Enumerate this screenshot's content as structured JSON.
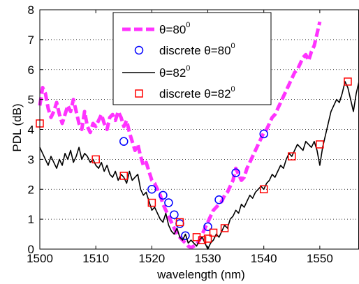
{
  "chart_data": {
    "type": "line",
    "xlabel": "wavelength (nm)",
    "ylabel": "PDL (dB)",
    "xlim": [
      1500,
      1557
    ],
    "ylim": [
      0,
      8
    ],
    "x_ticks": [
      1500,
      1510,
      1520,
      1530,
      1540,
      1550
    ],
    "y_ticks": [
      0,
      1,
      2,
      3,
      4,
      5,
      6,
      7,
      8
    ],
    "grid": "horizontal dotted",
    "legend_position": "top-center",
    "series": [
      {
        "name": "θ=80°",
        "legend_main": "θ=80",
        "legend_sup": "0",
        "style": "dashed-line",
        "color": "#ff33ff",
        "x": [
          1500,
          1500.5,
          1501,
          1501.5,
          1502,
          1502.5,
          1503,
          1503.5,
          1504,
          1504.5,
          1505,
          1505.5,
          1506,
          1506.5,
          1507,
          1507.5,
          1508,
          1508.5,
          1509,
          1509.5,
          1510,
          1510.5,
          1511,
          1511.5,
          1512,
          1512.5,
          1513,
          1513.5,
          1514,
          1514.5,
          1515,
          1515.5,
          1516,
          1516.5,
          1517,
          1517.5,
          1518,
          1518.5,
          1519,
          1519.5,
          1520,
          1520.5,
          1521,
          1521.5,
          1522,
          1522.5,
          1523,
          1523.5,
          1524,
          1524.5,
          1525,
          1525.5,
          1526,
          1526.5,
          1527,
          1527.5,
          1528,
          1528.5,
          1529,
          1529.5,
          1530,
          1530.5,
          1531,
          1531.5,
          1532,
          1532.5,
          1533,
          1533.5,
          1534,
          1534.5,
          1535,
          1535.5,
          1536,
          1536.5,
          1537,
          1537.5,
          1538,
          1538.5,
          1539,
          1539.5,
          1540,
          1540.5,
          1541,
          1541.5,
          1542,
          1542.5,
          1543,
          1543.5,
          1544,
          1544.5,
          1545,
          1545.5,
          1546,
          1546.5,
          1547,
          1547.5,
          1548,
          1548.5,
          1549,
          1549.5,
          1550
        ],
        "values": [
          4.8,
          5.4,
          5.2,
          4.7,
          4.4,
          4.6,
          4.9,
          4.5,
          4.2,
          4.5,
          4.8,
          4.6,
          5.0,
          4.6,
          4.2,
          4.0,
          4.6,
          4.1,
          3.9,
          4.2,
          4.1,
          4.3,
          4.5,
          4.2,
          4.0,
          4.4,
          4.5,
          4.3,
          4.6,
          4.4,
          4.1,
          4.3,
          3.9,
          3.6,
          3.3,
          3.5,
          3.1,
          2.8,
          2.9,
          2.6,
          2.3,
          2.2,
          2.0,
          1.8,
          1.5,
          1.3,
          1.1,
          0.9,
          0.7,
          0.5,
          0.4,
          0.3,
          0.2,
          0.1,
          0.05,
          0.1,
          0.15,
          0.3,
          0.5,
          0.7,
          0.9,
          1.1,
          1.3,
          1.4,
          1.5,
          1.6,
          1.8,
          1.9,
          2.1,
          2.3,
          2.7,
          2.5,
          2.3,
          2.4,
          2.7,
          2.9,
          3.1,
          3.3,
          3.5,
          3.7,
          3.9,
          4.0,
          4.2,
          4.4,
          4.5,
          4.7,
          4.9,
          5.1,
          5.3,
          5.5,
          5.7,
          5.9,
          6.0,
          6.2,
          6.4,
          6.5,
          6.3,
          6.6,
          6.8,
          7.2,
          7.6
        ]
      },
      {
        "name": "discrete θ=80°",
        "legend_main": "discrete θ=80",
        "legend_sup": "0",
        "style": "circle-markers",
        "color": "#0000ff",
        "x": [
          1515,
          1520,
          1522,
          1523,
          1524,
          1525,
          1526,
          1530,
          1532,
          1535,
          1540
        ],
        "values": [
          3.6,
          2.0,
          1.8,
          1.55,
          1.15,
          0.85,
          0.45,
          0.75,
          1.65,
          2.55,
          3.85
        ]
      },
      {
        "name": "θ=82°",
        "legend_main": "θ=82",
        "legend_sup": "0",
        "style": "solid-line",
        "color": "#000000",
        "x": [
          1500,
          1500.5,
          1501,
          1501.5,
          1502,
          1502.5,
          1503,
          1503.5,
          1504,
          1504.5,
          1505,
          1505.5,
          1506,
          1506.5,
          1507,
          1507.5,
          1508,
          1508.5,
          1509,
          1509.5,
          1510,
          1510.5,
          1511,
          1511.5,
          1512,
          1512.5,
          1513,
          1513.5,
          1514,
          1514.5,
          1515,
          1515.5,
          1516,
          1516.5,
          1517,
          1517.5,
          1518,
          1518.5,
          1519,
          1519.5,
          1520,
          1520.5,
          1521,
          1521.5,
          1522,
          1522.5,
          1523,
          1523.5,
          1524,
          1524.5,
          1525,
          1525.5,
          1526,
          1526.5,
          1527,
          1527.5,
          1528,
          1528.5,
          1529,
          1529.5,
          1530,
          1530.5,
          1531,
          1531.5,
          1532,
          1532.5,
          1533,
          1533.5,
          1534,
          1534.5,
          1535,
          1535.5,
          1536,
          1536.5,
          1537,
          1537.5,
          1538,
          1538.5,
          1539,
          1539.5,
          1540,
          1540.5,
          1541,
          1541.5,
          1542,
          1542.5,
          1543,
          1543.5,
          1544,
          1544.5,
          1545,
          1545.5,
          1546,
          1546.5,
          1547,
          1547.5,
          1548,
          1548.5,
          1549,
          1549.5,
          1550,
          1550.5,
          1551,
          1551.5,
          1552,
          1552.5,
          1553,
          1553.5,
          1554,
          1554.5,
          1555,
          1555.5,
          1556,
          1556.5,
          1557
        ],
        "values": [
          3.4,
          3.2,
          3.0,
          2.8,
          3.1,
          2.9,
          2.7,
          3.0,
          2.8,
          3.2,
          3.0,
          3.3,
          2.9,
          3.1,
          3.4,
          3.0,
          3.2,
          3.1,
          2.9,
          3.0,
          2.8,
          2.7,
          2.9,
          2.6,
          2.8,
          2.5,
          2.4,
          2.6,
          2.3,
          2.5,
          2.4,
          2.2,
          2.6,
          2.3,
          2.4,
          2.5,
          2.0,
          1.8,
          1.9,
          1.6,
          1.3,
          1.4,
          1.2,
          1.0,
          0.9,
          1.2,
          0.8,
          0.6,
          0.5,
          0.7,
          0.4,
          0.3,
          0.5,
          0.2,
          0.3,
          0.2,
          0.1,
          0.3,
          0.4,
          0.2,
          0.0,
          0.2,
          0.3,
          0.5,
          0.4,
          0.6,
          0.8,
          0.7,
          1.0,
          1.1,
          1.3,
          1.2,
          1.5,
          1.4,
          1.6,
          1.8,
          1.7,
          1.9,
          2.0,
          2.1,
          2.0,
          2.2,
          2.3,
          2.5,
          2.4,
          2.6,
          2.8,
          2.7,
          3.0,
          3.2,
          3.1,
          3.3,
          3.5,
          3.4,
          3.3,
          3.6,
          3.5,
          3.4,
          3.6,
          3.3,
          2.8,
          3.4,
          3.8,
          4.2,
          4.6,
          4.8,
          5.0,
          4.9,
          5.2,
          5.6,
          5.4,
          5.0,
          4.6,
          5.2,
          5.6
        ]
      },
      {
        "name": "discrete θ=82°",
        "legend_main": "discrete θ=82",
        "legend_sup": "0",
        "style": "square-markers",
        "color": "#ff0000",
        "x": [
          1500,
          1510,
          1515,
          1520,
          1525,
          1528,
          1529,
          1530,
          1531,
          1533,
          1540,
          1545,
          1550,
          1555
        ],
        "values": [
          4.2,
          3.0,
          2.45,
          1.55,
          0.9,
          0.4,
          0.3,
          0.35,
          0.55,
          0.7,
          2.0,
          3.1,
          3.5,
          5.6
        ]
      }
    ]
  }
}
